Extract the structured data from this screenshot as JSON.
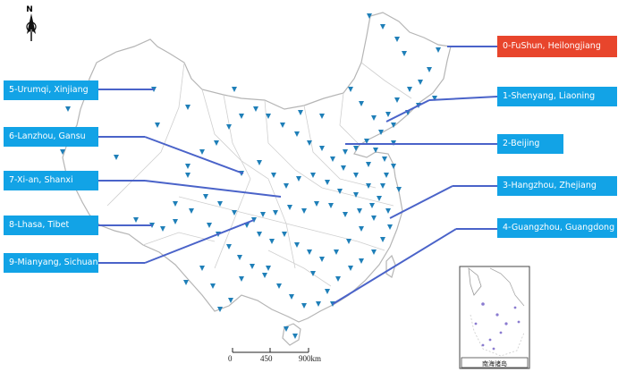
{
  "labels": [
    {
      "text": "0-FuShun, Heilongjiang",
      "color": "#e8452c"
    },
    {
      "text": "1-Shenyang, Liaoning",
      "color": "#12a3e6"
    },
    {
      "text": "2-Beijing",
      "color": "#12a3e6"
    },
    {
      "text": "3-Hangzhou, Zhejiang",
      "color": "#12a3e6"
    },
    {
      "text": "4-Guangzhou, Guangdong",
      "color": "#12a3e6"
    },
    {
      "text": "5-Urumqi, Xinjiang",
      "color": "#12a3e6"
    },
    {
      "text": "6-Lanzhou, Gansu",
      "color": "#12a3e6"
    },
    {
      "text": "7-Xi-an, Shanxi",
      "color": "#12a3e6"
    },
    {
      "text": "8-Lhasa, Tibet",
      "color": "#12a3e6"
    },
    {
      "text": "9-Mianyang, Sichuan",
      "color": "#12a3e6"
    }
  ],
  "north_arrow": {
    "letter": "N",
    "icon": "north-arrow-icon"
  },
  "scale_bar": {
    "ticks": [
      "0",
      "450",
      "900km"
    ]
  },
  "inset": {
    "caption": "南海诸岛"
  },
  "colors": {
    "marker": "#1f7fb8",
    "leader_line": "#4a63c9",
    "boundary": "#c8c8c8"
  }
}
